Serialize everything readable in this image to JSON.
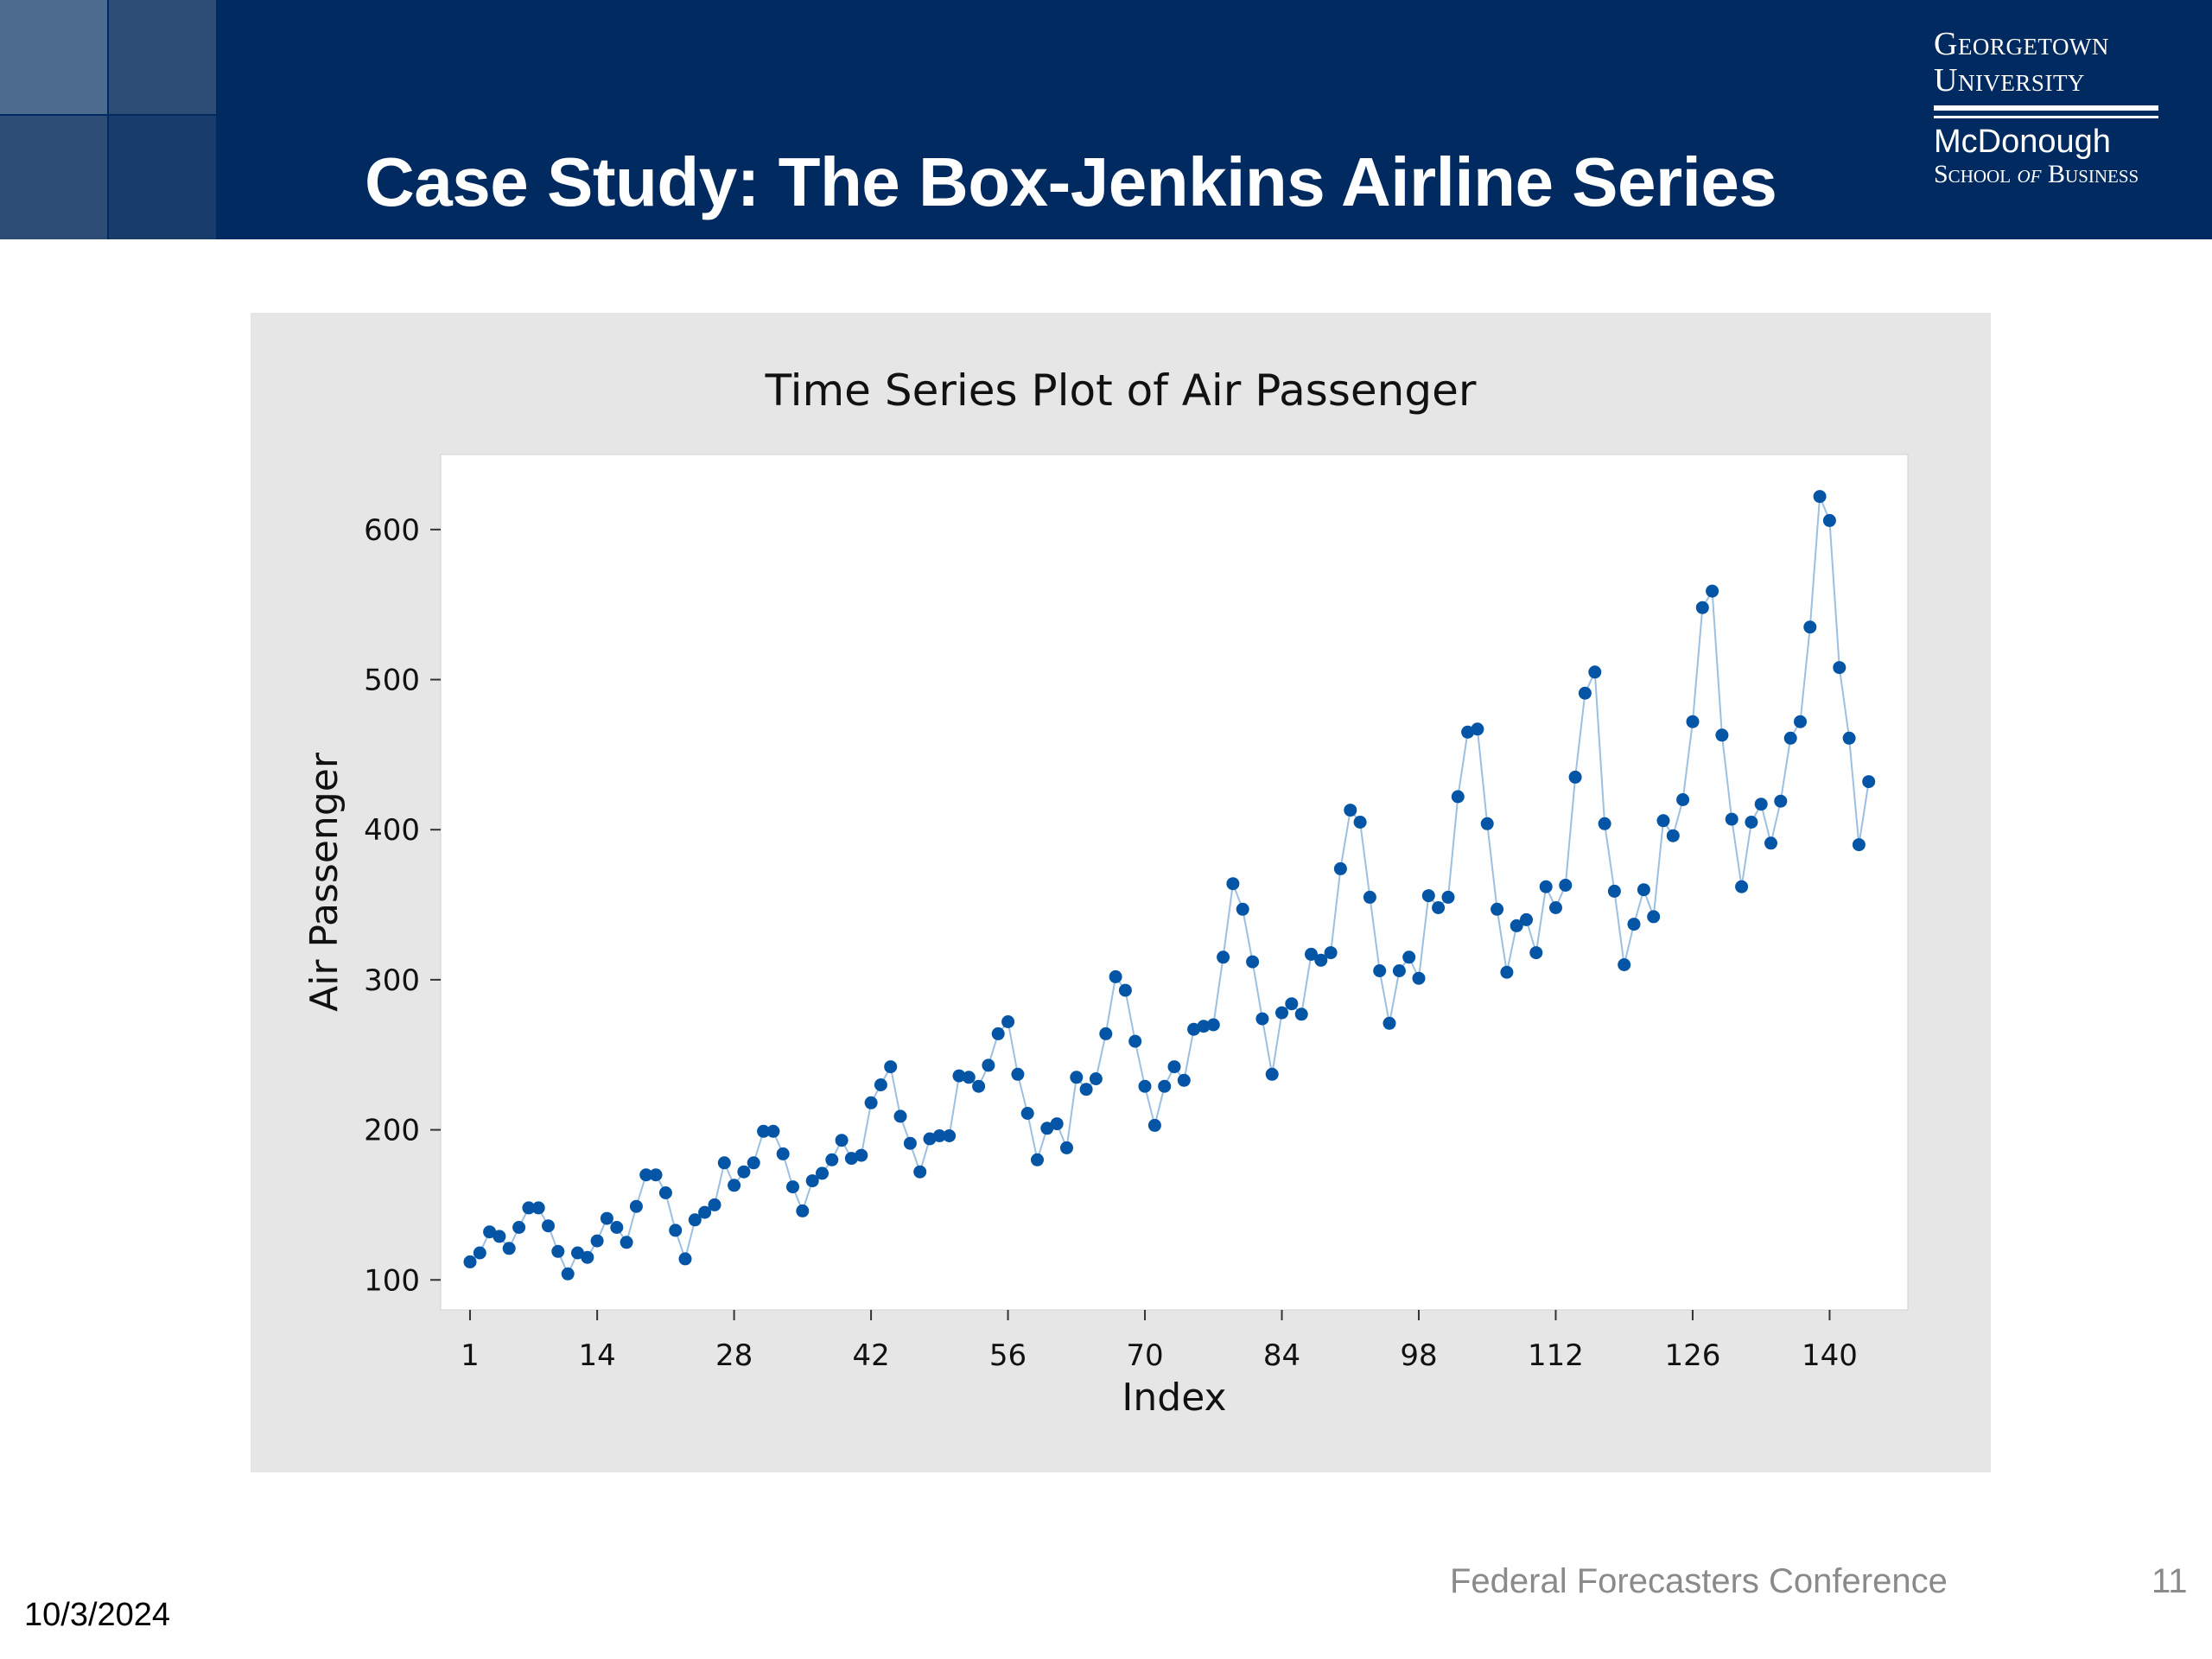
{
  "slide": {
    "title": "Case Study: The Box-Jenkins Airline Series",
    "logo": {
      "line1": "Georgetown",
      "line2": "University",
      "line3": "McDonough",
      "line4a": "School ",
      "line4b": "of",
      "line4c": " Business"
    },
    "footer": {
      "date": "10/3/2024",
      "conference": "Federal Forecasters Conference",
      "page": "11"
    }
  },
  "colors": {
    "header": "#012b60",
    "panel": "#e6e6e6",
    "series_point": "#0455a5",
    "series_line": "#9dbfe0"
  },
  "chart_data": {
    "type": "line",
    "title": "Time Series Plot of Air Passenger",
    "xlabel": "Index",
    "ylabel": "Air Passenger",
    "xticks": [
      1,
      14,
      28,
      42,
      56,
      70,
      84,
      98,
      112,
      126,
      140
    ],
    "yticks": [
      100,
      200,
      300,
      400,
      500,
      600
    ],
    "xlim": [
      -2,
      148
    ],
    "ylim": [
      80,
      650
    ],
    "markers": true,
    "grid": false,
    "x_start": 1,
    "series": [
      {
        "values": [
          112,
          118,
          132,
          129,
          121,
          135,
          148,
          148,
          136,
          119,
          104,
          118,
          115,
          126,
          141,
          135,
          125,
          149,
          170,
          170,
          158,
          133,
          114,
          140,
          145,
          150,
          178,
          163,
          172,
          178,
          199,
          199,
          184,
          162,
          146,
          166,
          171,
          180,
          193,
          181,
          183,
          218,
          230,
          242,
          209,
          191,
          172,
          194,
          196,
          196,
          236,
          235,
          229,
          243,
          264,
          272,
          237,
          211,
          180,
          201,
          204,
          188,
          235,
          227,
          234,
          264,
          302,
          293,
          259,
          229,
          203,
          229,
          242,
          233,
          267,
          269,
          270,
          315,
          364,
          347,
          312,
          274,
          237,
          278,
          284,
          277,
          317,
          313,
          318,
          374,
          413,
          405,
          355,
          306,
          271,
          306,
          315,
          301,
          356,
          348,
          355,
          422,
          465,
          467,
          404,
          347,
          305,
          336,
          340,
          318,
          362,
          348,
          363,
          435,
          491,
          505,
          404,
          359,
          310,
          337,
          360,
          342,
          406,
          396,
          420,
          472,
          548,
          559,
          463,
          407,
          362,
          405,
          417,
          391,
          419,
          461,
          472,
          535,
          622,
          606,
          508,
          461,
          390,
          432
        ]
      }
    ]
  }
}
